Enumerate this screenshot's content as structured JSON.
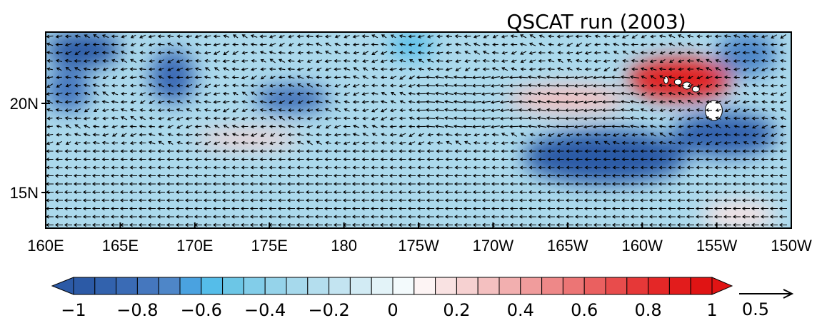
{
  "chart_data": {
    "type": "heatmap",
    "title": "QSCAT run (2003)",
    "x_axis": {
      "range": [
        160,
        210
      ],
      "ticks": [
        {
          "value": 160,
          "label": "160E"
        },
        {
          "value": 165,
          "label": "165E"
        },
        {
          "value": 170,
          "label": "170E"
        },
        {
          "value": 175,
          "label": "175E"
        },
        {
          "value": 180,
          "label": "180"
        },
        {
          "value": 185,
          "label": "175W"
        },
        {
          "value": 190,
          "label": "170W"
        },
        {
          "value": 195,
          "label": "165W"
        },
        {
          "value": 200,
          "label": "160W"
        },
        {
          "value": 205,
          "label": "155W"
        },
        {
          "value": 210,
          "label": "150W"
        }
      ]
    },
    "y_axis": {
      "range": [
        13,
        24
      ],
      "ticks": [
        {
          "value": 15,
          "label": "15N"
        },
        {
          "value": 20,
          "label": "20N"
        }
      ]
    },
    "colorbar": {
      "min": -1,
      "max": 1,
      "levels": 30,
      "extend": "both",
      "orientation": "horizontal",
      "ticks": [
        {
          "value": -1,
          "label": "−1"
        },
        {
          "value": -0.8,
          "label": "−0.8"
        },
        {
          "value": -0.6,
          "label": "−0.6"
        },
        {
          "value": -0.4,
          "label": "−0.4"
        },
        {
          "value": -0.2,
          "label": "−0.2"
        },
        {
          "value": 0,
          "label": "0"
        },
        {
          "value": 0.2,
          "label": "0.2"
        },
        {
          "value": 0.4,
          "label": "0.4"
        },
        {
          "value": 0.6,
          "label": "0.6"
        },
        {
          "value": 0.8,
          "label": "0.8"
        },
        {
          "value": 1,
          "label": "1"
        }
      ],
      "colors": [
        "#2c5aa6",
        "#3262ad",
        "#3a6bb5",
        "#4577be",
        "#4e86c8",
        "#4aa2e0",
        "#55bde9",
        "#6cc6e6",
        "#82cde9",
        "#95d3ea",
        "#a6d9ec",
        "#b4deee",
        "#c3e4f1",
        "#d2ebf4",
        "#e3f3f8",
        "#f3fafc",
        "#fdf4f4",
        "#f9e2e2",
        "#f6d1d1",
        "#f4c0c0",
        "#f2afaf",
        "#f09c9c",
        "#ee8888",
        "#ec7575",
        "#ea6060",
        "#e84c4c",
        "#e63838",
        "#e42727",
        "#e21c1c",
        "#e01414"
      ]
    },
    "reference_vector": {
      "label": "0.5",
      "value": 0.5
    },
    "anomaly_regions": [
      {
        "sign": "negative",
        "value": -0.95,
        "lon": [
          160,
          165
        ],
        "lat": [
          22,
          24
        ]
      },
      {
        "sign": "negative",
        "value": -0.75,
        "lon": [
          160,
          163
        ],
        "lat": [
          19.5,
          22
        ]
      },
      {
        "sign": "negative",
        "value": -0.8,
        "lon": [
          167,
          170
        ],
        "lat": [
          20,
          23
        ]
      },
      {
        "sign": "negative",
        "value": -0.85,
        "lon": [
          174,
          179
        ],
        "lat": [
          19.5,
          21
        ]
      },
      {
        "sign": "negative",
        "value": -0.6,
        "lon": [
          183,
          186
        ],
        "lat": [
          22.5,
          24
        ]
      },
      {
        "sign": "negative",
        "value": -0.95,
        "lon": [
          192,
          203
        ],
        "lat": [
          15.5,
          18.5
        ]
      },
      {
        "sign": "negative",
        "value": -0.9,
        "lon": [
          202,
          209
        ],
        "lat": [
          17,
          19.5
        ]
      },
      {
        "sign": "negative",
        "value": -0.7,
        "lon": [
          205,
          209
        ],
        "lat": [
          21.5,
          24
        ]
      },
      {
        "sign": "positive",
        "value": 0.9,
        "lon": [
          199,
          206
        ],
        "lat": [
          20.2,
          22.5
        ]
      },
      {
        "sign": "positive",
        "value": 0.3,
        "lon": [
          191,
          199
        ],
        "lat": [
          19.5,
          21
        ]
      },
      {
        "sign": "positive",
        "value": 0.25,
        "lon": [
          170,
          177
        ],
        "lat": [
          17.5,
          18.5
        ]
      },
      {
        "sign": "positive",
        "value": 0.15,
        "lon": [
          204,
          209
        ],
        "lat": [
          13,
          14.5
        ]
      }
    ],
    "grid": false,
    "legend": "colorbar-bottom"
  }
}
